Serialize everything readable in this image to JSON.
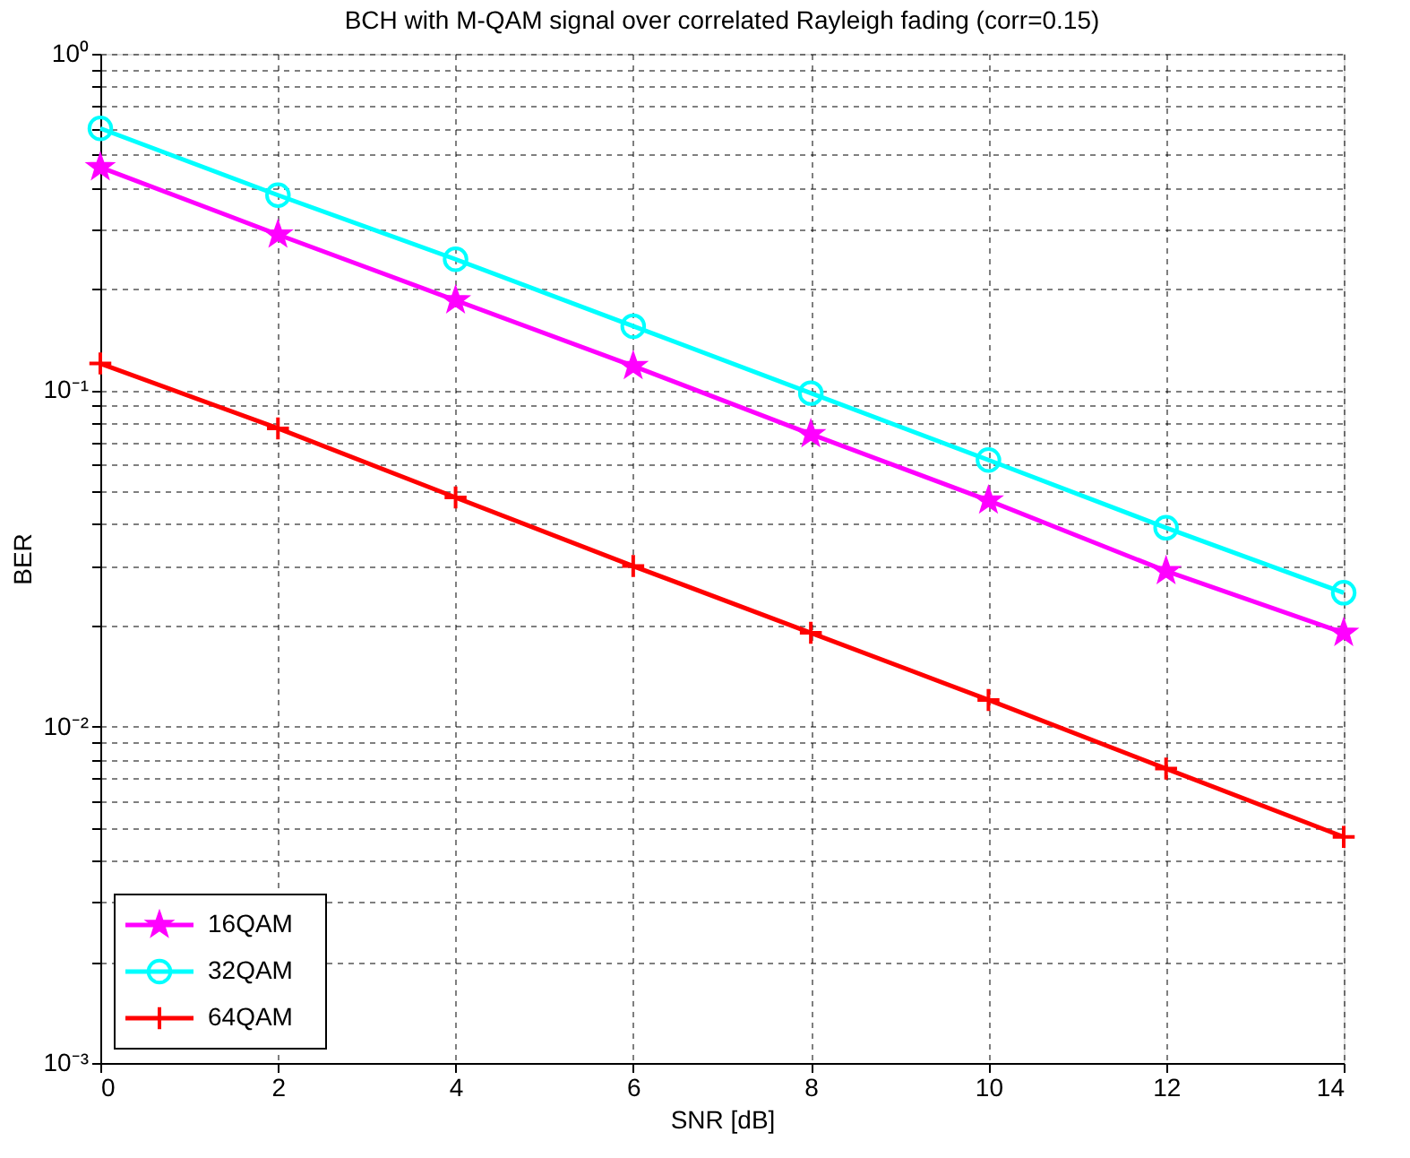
{
  "chart_data": {
    "type": "line",
    "title": "BCH with M-QAM signal over correlated Rayleigh fading (corr=0.15)",
    "xlabel": "SNR [dB]",
    "ylabel": "BER",
    "x": [
      0,
      2,
      4,
      6,
      8,
      10,
      12,
      14
    ],
    "series": [
      {
        "name": "16QAM",
        "color": "#ff00ff",
        "marker": "star",
        "values": [
          0.46,
          0.29,
          0.185,
          0.118,
          0.074,
          0.047,
          0.029,
          0.019
        ]
      },
      {
        "name": "32QAM",
        "color": "#00ffff",
        "marker": "circle",
        "values": [
          0.6,
          0.38,
          0.245,
          0.155,
          0.098,
          0.062,
          0.039,
          0.025
        ]
      },
      {
        "name": "64QAM",
        "color": "#ff0000",
        "marker": "cross",
        "values": [
          0.12,
          0.077,
          0.048,
          0.03,
          0.019,
          0.012,
          0.0075,
          0.0047
        ]
      }
    ],
    "log": "y",
    "xlim": [
      0,
      14
    ],
    "xticks": [
      0,
      2,
      4,
      6,
      8,
      10,
      12,
      14
    ],
    "ylim": [
      0.001,
      1
    ],
    "yticks": [
      {
        "value": 0.001,
        "label": "10⁻³"
      },
      {
        "value": 0.002,
        "label": null
      },
      {
        "value": 0.003,
        "label": null
      },
      {
        "value": 0.004,
        "label": null
      },
      {
        "value": 0.005,
        "label": null
      },
      {
        "value": 0.006,
        "label": null
      },
      {
        "value": 0.007,
        "label": null
      },
      {
        "value": 0.008,
        "label": null
      },
      {
        "value": 0.009,
        "label": null
      },
      {
        "value": 0.01,
        "label": "10⁻²"
      },
      {
        "value": 0.02,
        "label": null
      },
      {
        "value": 0.03,
        "label": null
      },
      {
        "value": 0.04,
        "label": null
      },
      {
        "value": 0.05,
        "label": null
      },
      {
        "value": 0.06,
        "label": null
      },
      {
        "value": 0.07,
        "label": null
      },
      {
        "value": 0.08,
        "label": null
      },
      {
        "value": 0.09,
        "label": null
      },
      {
        "value": 0.1,
        "label": "10⁻¹"
      },
      {
        "value": 0.2,
        "label": null
      },
      {
        "value": 0.3,
        "label": null
      },
      {
        "value": 0.4,
        "label": null
      },
      {
        "value": 0.5,
        "label": null
      },
      {
        "value": 0.6,
        "label": null
      },
      {
        "value": 0.7,
        "label": null
      },
      {
        "value": 0.8,
        "label": null
      },
      {
        "value": 0.9,
        "label": null
      },
      {
        "value": 1,
        "label": "10⁰"
      }
    ],
    "grid": true,
    "legend": "bottom left",
    "line_style": "solid"
  }
}
